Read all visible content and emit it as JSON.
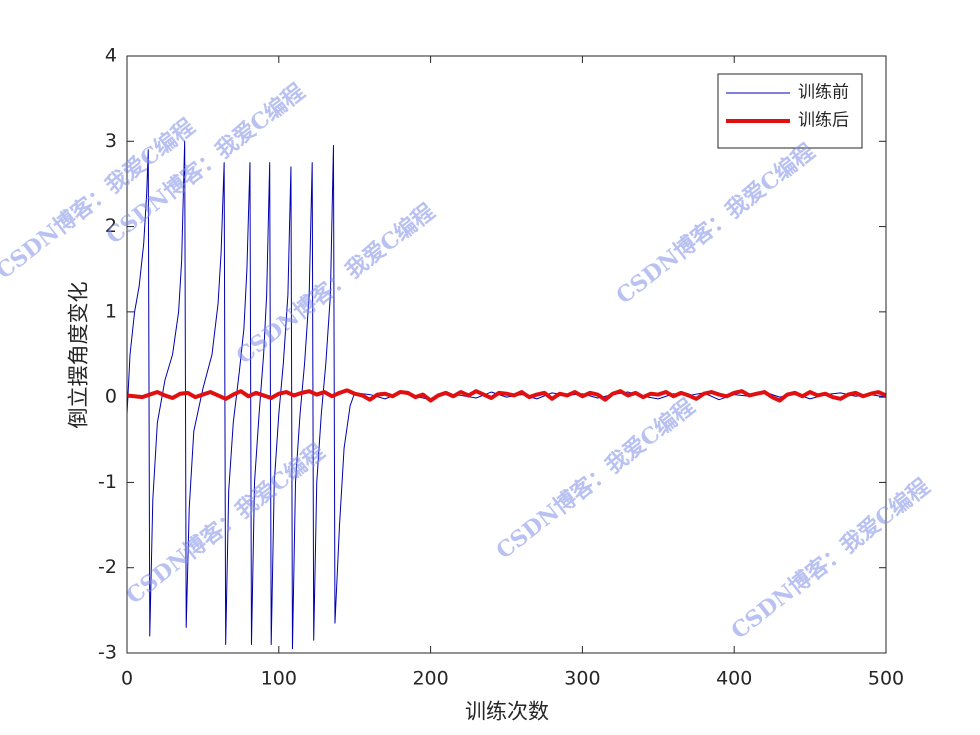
{
  "chart_data": {
    "type": "line",
    "xlabel": "训练次数",
    "ylabel": "倒立摆角度变化",
    "watermark": "CSDN博客：我爱C编程",
    "xlim": [
      0,
      500
    ],
    "ylim": [
      -3,
      4
    ],
    "xticks": [
      0,
      100,
      200,
      300,
      400,
      500
    ],
    "yticks": [
      -3,
      -2,
      -1,
      0,
      1,
      2,
      3,
      4
    ],
    "legend": "upper right",
    "series": [
      {
        "name": "训练前",
        "color": "#0000b0",
        "width": 1,
        "x": [
          0,
          2,
          5,
          8,
          11,
          13,
          14,
          15,
          17,
          20,
          25,
          30,
          34,
          36,
          38,
          39,
          41,
          44,
          50,
          56,
          60,
          62,
          64,
          65,
          67,
          70,
          74,
          77,
          79,
          81,
          82,
          84,
          87,
          90,
          92,
          94,
          95,
          97,
          100,
          103,
          106,
          108,
          109,
          111,
          114,
          117,
          120,
          122,
          123,
          125,
          128,
          131,
          134,
          136,
          137,
          140,
          143,
          147,
          150,
          160,
          170,
          180,
          190,
          200,
          210,
          220,
          230,
          240,
          250,
          260,
          270,
          280,
          290,
          300,
          310,
          320,
          330,
          340,
          350,
          360,
          370,
          380,
          390,
          400,
          410,
          420,
          430,
          440,
          450,
          460,
          470,
          480,
          490,
          500
        ],
        "values": [
          -0.2,
          0.5,
          1.0,
          1.3,
          1.8,
          2.4,
          2.9,
          -2.8,
          -1.2,
          -0.3,
          0.2,
          0.5,
          1.0,
          1.6,
          3.0,
          -2.7,
          -1.3,
          -0.4,
          0.1,
          0.5,
          1.1,
          1.7,
          2.75,
          -2.9,
          -1.1,
          -0.3,
          0.3,
          0.8,
          1.5,
          2.75,
          -2.9,
          -1.0,
          -0.2,
          0.5,
          1.2,
          2.75,
          -2.9,
          -1.0,
          -0.2,
          0.4,
          1.2,
          2.7,
          -2.95,
          -1.0,
          -0.2,
          0.4,
          1.2,
          2.75,
          -2.85,
          -1.0,
          -0.2,
          0.4,
          1.2,
          2.95,
          -2.65,
          -1.5,
          -0.6,
          -0.1,
          0.05,
          0.03,
          -0.02,
          0.05,
          0.01,
          -0.03,
          0.04,
          0.02,
          -0.01,
          0.06,
          0.0,
          0.03,
          -0.02,
          0.05,
          0.02,
          0.04,
          -0.01,
          0.03,
          0.06,
          0.01,
          -0.02,
          0.04,
          0.02,
          0.05,
          -0.03,
          0.03,
          0.01,
          0.06,
          0.0,
          0.04,
          -0.02,
          0.03,
          0.05,
          0.01,
          0.03,
          0.0
        ]
      },
      {
        "name": "训练后",
        "color": "#e01010",
        "width": 4,
        "x": [
          0,
          5,
          10,
          15,
          20,
          25,
          30,
          35,
          40,
          45,
          50,
          55,
          60,
          65,
          70,
          75,
          80,
          85,
          90,
          95,
          100,
          105,
          110,
          115,
          120,
          125,
          130,
          135,
          140,
          145,
          150,
          155,
          160,
          165,
          170,
          175,
          180,
          185,
          190,
          195,
          200,
          205,
          210,
          215,
          220,
          225,
          230,
          235,
          240,
          245,
          250,
          255,
          260,
          265,
          270,
          275,
          280,
          285,
          290,
          295,
          300,
          305,
          310,
          315,
          320,
          325,
          330,
          335,
          340,
          345,
          350,
          355,
          360,
          365,
          370,
          375,
          380,
          385,
          390,
          395,
          400,
          405,
          410,
          415,
          420,
          425,
          430,
          435,
          440,
          445,
          450,
          455,
          460,
          465,
          470,
          475,
          480,
          485,
          490,
          495,
          500
        ],
        "values": [
          0.02,
          0.01,
          0.0,
          0.03,
          0.06,
          0.02,
          -0.01,
          0.04,
          0.05,
          0.0,
          0.03,
          0.06,
          0.02,
          -0.02,
          0.03,
          0.07,
          0.01,
          0.05,
          0.02,
          -0.01,
          0.04,
          0.06,
          0.02,
          0.05,
          0.07,
          0.03,
          0.06,
          0.01,
          0.05,
          0.08,
          0.04,
          0.02,
          -0.03,
          0.03,
          0.04,
          0.01,
          0.06,
          0.05,
          0.0,
          0.03,
          -0.04,
          0.02,
          0.05,
          0.01,
          0.06,
          0.02,
          0.07,
          0.03,
          -0.01,
          0.05,
          0.04,
          0.02,
          0.06,
          0.0,
          0.03,
          0.05,
          -0.02,
          0.04,
          0.02,
          0.06,
          0.01,
          0.05,
          0.03,
          -0.03,
          0.04,
          0.07,
          0.02,
          0.05,
          0.0,
          0.04,
          0.03,
          0.06,
          0.01,
          0.05,
          0.02,
          -0.02,
          0.04,
          0.06,
          0.03,
          0.01,
          0.05,
          0.07,
          0.02,
          0.04,
          0.06,
          0.0,
          -0.04,
          0.03,
          0.05,
          0.01,
          0.06,
          0.02,
          0.04,
          0.0,
          -0.02,
          0.03,
          0.05,
          0.01,
          0.04,
          0.06,
          0.02
        ]
      }
    ]
  }
}
